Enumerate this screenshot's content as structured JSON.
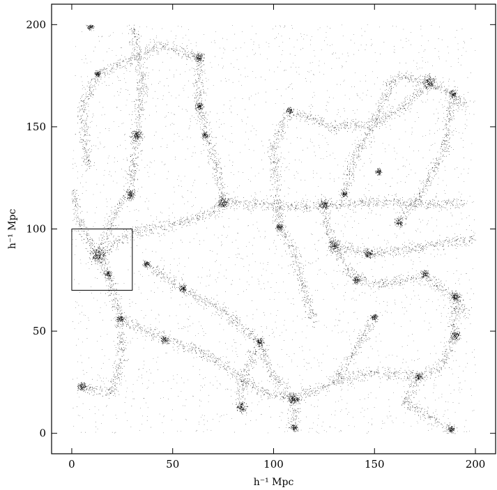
{
  "chart_data": {
    "type": "scatter",
    "title": "",
    "xlabel": "h⁻¹ Mpc",
    "ylabel": "h⁻¹ Mpc",
    "xlim": [
      -10,
      210
    ],
    "ylim": [
      -10,
      210
    ],
    "xticks": [
      0,
      50,
      100,
      150,
      200
    ],
    "yticks": [
      0,
      50,
      100,
      150,
      200
    ],
    "xtick_labels": [
      "0",
      "50",
      "100",
      "150",
      "200"
    ],
    "ytick_labels": [
      "0",
      "50",
      "100",
      "150",
      "200"
    ],
    "grid": false,
    "legend": "none",
    "marker_color": "#000000",
    "highlight_box": {
      "x0": 0,
      "x1": 30,
      "y0": 70,
      "y1": 100
    },
    "halos": [
      {
        "x": 13,
        "y": 87,
        "size": 4
      },
      {
        "x": 177,
        "y": 172,
        "size": 3.5
      },
      {
        "x": 32,
        "y": 146,
        "size": 3
      },
      {
        "x": 29,
        "y": 117,
        "size": 2.5
      },
      {
        "x": 75,
        "y": 113,
        "size": 3
      },
      {
        "x": 63,
        "y": 184,
        "size": 2.5
      },
      {
        "x": 63,
        "y": 160,
        "size": 2
      },
      {
        "x": 125,
        "y": 112,
        "size": 2.5
      },
      {
        "x": 130,
        "y": 92,
        "size": 3
      },
      {
        "x": 147,
        "y": 88,
        "size": 2.5
      },
      {
        "x": 110,
        "y": 17,
        "size": 3
      },
      {
        "x": 84,
        "y": 13,
        "size": 2.5
      },
      {
        "x": 5,
        "y": 23,
        "size": 2.5
      },
      {
        "x": 24,
        "y": 56,
        "size": 2
      },
      {
        "x": 46,
        "y": 46,
        "size": 2
      },
      {
        "x": 55,
        "y": 71,
        "size": 2
      },
      {
        "x": 93,
        "y": 45,
        "size": 2
      },
      {
        "x": 190,
        "y": 48,
        "size": 2.5
      },
      {
        "x": 190,
        "y": 67,
        "size": 2.5
      },
      {
        "x": 189,
        "y": 166,
        "size": 2
      },
      {
        "x": 162,
        "y": 103,
        "size": 2
      },
      {
        "x": 175,
        "y": 78,
        "size": 2
      },
      {
        "x": 141,
        "y": 75,
        "size": 2
      },
      {
        "x": 103,
        "y": 101,
        "size": 2
      },
      {
        "x": 18,
        "y": 78,
        "size": 2
      },
      {
        "x": 13,
        "y": 176,
        "size": 1.8
      },
      {
        "x": 110,
        "y": 3,
        "size": 2
      },
      {
        "x": 172,
        "y": 28,
        "size": 1.8
      },
      {
        "x": 188,
        "y": 2,
        "size": 2
      },
      {
        "x": 9,
        "y": 199,
        "size": 1.8
      },
      {
        "x": 108,
        "y": 158,
        "size": 1.8
      },
      {
        "x": 135,
        "y": 117,
        "size": 1.8
      },
      {
        "x": 152,
        "y": 128,
        "size": 1.8
      },
      {
        "x": 150,
        "y": 57,
        "size": 1.8
      },
      {
        "x": 66,
        "y": 146,
        "size": 1.8
      },
      {
        "x": 37,
        "y": 83,
        "size": 1.8
      }
    ],
    "filaments": [
      [
        [
          13,
          87
        ],
        [
          22,
          93
        ],
        [
          30,
          99
        ],
        [
          45,
          101
        ],
        [
          58,
          104
        ],
        [
          70,
          108
        ],
        [
          75,
          113
        ]
      ],
      [
        [
          75,
          113
        ],
        [
          95,
          112
        ],
        [
          112,
          111
        ],
        [
          125,
          112
        ],
        [
          145,
          113
        ],
        [
          170,
          113
        ],
        [
          195,
          112
        ]
      ],
      [
        [
          75,
          113
        ],
        [
          72,
          130
        ],
        [
          66,
          150
        ],
        [
          63,
          162
        ],
        [
          63,
          184
        ]
      ],
      [
        [
          125,
          112
        ],
        [
          127,
          100
        ],
        [
          130,
          92
        ],
        [
          147,
          88
        ],
        [
          165,
          90
        ],
        [
          200,
          96
        ]
      ],
      [
        [
          130,
          92
        ],
        [
          138,
          78
        ],
        [
          150,
          73
        ],
        [
          175,
          77
        ],
        [
          190,
          67
        ],
        [
          195,
          58
        ]
      ],
      [
        [
          13,
          87
        ],
        [
          22,
          110
        ],
        [
          29,
          117
        ],
        [
          32,
          146
        ],
        [
          35,
          170
        ],
        [
          30,
          200
        ]
      ],
      [
        [
          177,
          172
        ],
        [
          189,
          166
        ],
        [
          195,
          160
        ]
      ],
      [
        [
          177,
          172
        ],
        [
          165,
          160
        ],
        [
          150,
          152
        ],
        [
          130,
          150
        ],
        [
          108,
          158
        ]
      ],
      [
        [
          13,
          87
        ],
        [
          18,
          78
        ],
        [
          24,
          56
        ],
        [
          25,
          38
        ],
        [
          20,
          20
        ],
        [
          5,
          23
        ]
      ],
      [
        [
          37,
          83
        ],
        [
          55,
          71
        ],
        [
          75,
          60
        ],
        [
          93,
          45
        ],
        [
          98,
          30
        ],
        [
          110,
          17
        ],
        [
          110,
          3
        ]
      ],
      [
        [
          93,
          45
        ],
        [
          84,
          25
        ],
        [
          84,
          13
        ]
      ],
      [
        [
          24,
          56
        ],
        [
          46,
          46
        ],
        [
          65,
          40
        ],
        [
          80,
          30
        ],
        [
          95,
          20
        ],
        [
          110,
          17
        ]
      ],
      [
        [
          190,
          67
        ],
        [
          190,
          48
        ],
        [
          182,
          32
        ],
        [
          172,
          28
        ],
        [
          165,
          15
        ],
        [
          188,
          2
        ]
      ],
      [
        [
          110,
          17
        ],
        [
          130,
          25
        ],
        [
          150,
          30
        ],
        [
          172,
          28
        ]
      ],
      [
        [
          63,
          184
        ],
        [
          45,
          190
        ],
        [
          13,
          176
        ],
        [
          5,
          160
        ],
        [
          8,
          130
        ]
      ],
      [
        [
          150,
          57
        ],
        [
          140,
          40
        ],
        [
          130,
          25
        ]
      ],
      [
        [
          162,
          103
        ],
        [
          175,
          120
        ],
        [
          185,
          140
        ],
        [
          189,
          166
        ]
      ],
      [
        [
          108,
          158
        ],
        [
          100,
          140
        ],
        [
          103,
          101
        ],
        [
          110,
          90
        ],
        [
          115,
          70
        ],
        [
          120,
          55
        ]
      ],
      [
        [
          135,
          117
        ],
        [
          140,
          135
        ],
        [
          150,
          152
        ]
      ],
      [
        [
          150,
          152
        ],
        [
          160,
          175
        ],
        [
          177,
          172
        ]
      ],
      [
        [
          13,
          87
        ],
        [
          5,
          100
        ],
        [
          0,
          120
        ]
      ]
    ]
  }
}
